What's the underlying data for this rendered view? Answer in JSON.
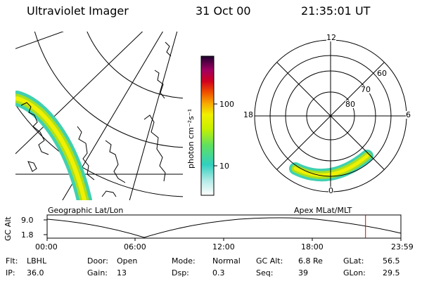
{
  "header": {
    "title": "Ultraviolet Imager",
    "date": "31 Oct 00",
    "time": "21:35:01 UT"
  },
  "colorbar": {
    "unit_label": "photon cm⁻²s⁻¹",
    "ticks": [
      "100",
      "10"
    ]
  },
  "polar": {
    "mlt_labels": {
      "top": "12",
      "left": "18",
      "right": "6",
      "bottom": "0"
    },
    "lat_labels": [
      "60",
      "70",
      "80"
    ]
  },
  "panels": {
    "geo_label": "Geographic Lat/Lon",
    "apex_label": "Apex MLat/MLT"
  },
  "altitude_plot": {
    "axis_label": "GC Alt",
    "y_ticks": [
      "9.0",
      "1.8"
    ],
    "x_ticks": [
      "00:00",
      "06:00",
      "12:00",
      "18:00",
      "23:59"
    ],
    "current_time_fraction": 0.9
  },
  "status": {
    "row1": [
      {
        "key": "Flt:",
        "val": "LBHL"
      },
      {
        "key": "Door:",
        "val": "Open"
      },
      {
        "key": "Mode:",
        "val": "Normal"
      },
      {
        "key": "GC Alt:",
        "val": "6.8 Re"
      },
      {
        "key": "GLat:",
        "val": "56.5"
      }
    ],
    "row2": [
      {
        "key": "IP:",
        "val": "36.0"
      },
      {
        "key": "Gain:",
        "val": "13"
      },
      {
        "key": "Dsp:",
        "val": "0.3"
      },
      {
        "key": "Seq:",
        "val": "39"
      },
      {
        "key": "GLon:",
        "val": "29.5"
      }
    ]
  },
  "colors": {
    "aurora_outer": "#40d0b0",
    "aurora_mid": "#a8e020",
    "aurora_core": "#f0f000",
    "marker": "#e00000"
  }
}
